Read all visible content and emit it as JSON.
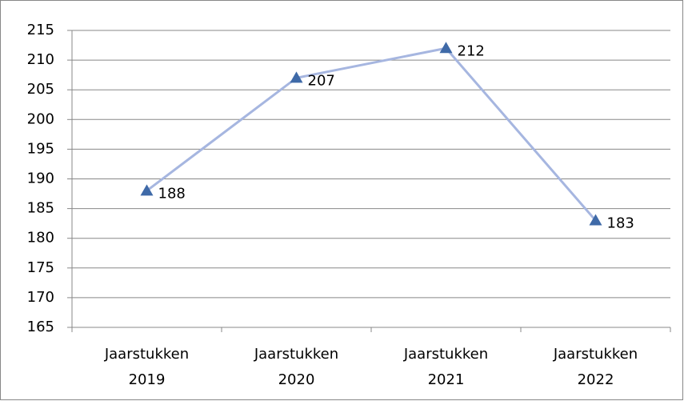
{
  "chart_data": {
    "type": "line",
    "categories": [
      "Jaarstukken 2019",
      "Jaarstukken 2020",
      "Jaarstukken 2021",
      "Jaarstukken 2022"
    ],
    "series": [
      {
        "name": "",
        "color": "#a6b6e0",
        "marker_color": "#3f6aa8",
        "values": [
          188,
          207,
          212,
          183
        ]
      }
    ],
    "ylim": [
      165,
      215
    ],
    "yticks": [
      165,
      170,
      175,
      180,
      185,
      190,
      195,
      200,
      205,
      210,
      215
    ],
    "grid": true
  }
}
